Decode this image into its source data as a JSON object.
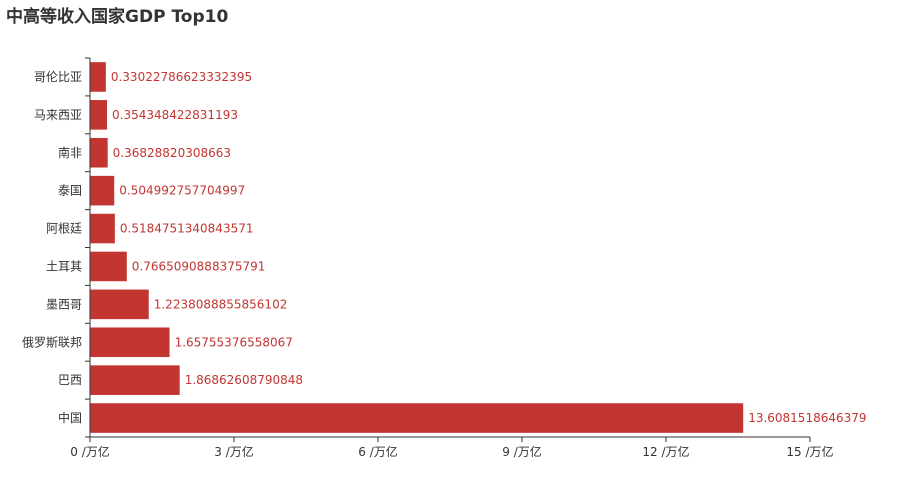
{
  "chart_data": {
    "type": "bar",
    "orientation": "horizontal",
    "title": "中高等收入国家GDP Top10",
    "categories": [
      "中国",
      "巴西",
      "俄罗斯联邦",
      "墨西哥",
      "土耳其",
      "阿根廷",
      "泰国",
      "南非",
      "马来西亚",
      "哥伦比亚"
    ],
    "values": [
      13.6081518646379,
      1.86862608790848,
      1.65755376558067,
      1.2238088855856102,
      0.7665090888375791,
      0.5184751340843571,
      0.504992757704997,
      0.36828820308663,
      0.354348422831193,
      0.33022786623332395
    ],
    "data_labels": [
      "13.6081518646379",
      "1.86862608790848",
      "1.65755376558067",
      "1.2238088855856102",
      "0.7665090888375791",
      "0.5184751340843571",
      "0.504992757704997",
      "0.36828820308663",
      "0.354348422831193",
      "0.33022786623332395"
    ],
    "xlim": [
      0,
      15
    ],
    "x_ticks": [
      0,
      3,
      6,
      9,
      12,
      15
    ],
    "x_tick_labels": [
      "0 /万亿",
      "3 /万亿",
      "6 /万亿",
      "9 /万亿",
      "12 /万亿",
      "15 /万亿"
    ],
    "xlabel": "",
    "ylabel": "",
    "grid": false,
    "bar_color": "#c23531",
    "label_color": "#c23531",
    "axis_color": "#333333"
  }
}
